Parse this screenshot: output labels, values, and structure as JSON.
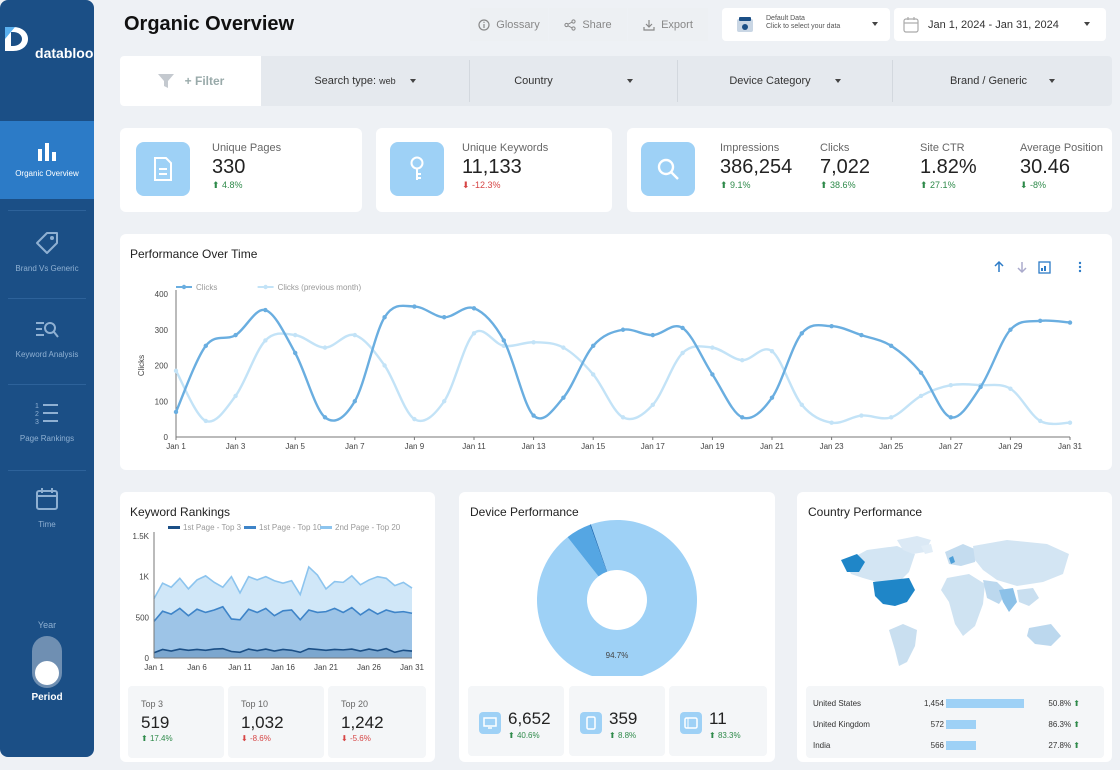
{
  "sidebar": {
    "brand": "databloo",
    "items": [
      {
        "label": "Organic Overview",
        "icon": "bar-chart-icon"
      },
      {
        "label": "Brand Vs Generic",
        "icon": "tag-icon"
      },
      {
        "label": "Keyword Analysis",
        "icon": "search-list-icon"
      },
      {
        "label": "Page Rankings",
        "icon": "numbered-list-icon"
      },
      {
        "label": "Time",
        "icon": "calendar-icon"
      }
    ],
    "toggle_title": "Year",
    "toggle_label": "Period"
  },
  "header": {
    "title": "Organic Overview",
    "glossary": "Glossary",
    "share": "Share",
    "export": "Export",
    "datasource_line1": "Default Data",
    "datasource_line2": "Click to select your data",
    "date_range": "Jan 1, 2024 - Jan 31, 2024"
  },
  "filters": {
    "add": "+ Filter",
    "search_type_label": "Search type:",
    "search_type_value": "web",
    "country": "Country",
    "device": "Device Category",
    "brand": "Brand / Generic"
  },
  "kpis": {
    "unique_pages": {
      "label": "Unique Pages",
      "value": "330",
      "delta": "4.8%",
      "dir": "up"
    },
    "unique_keywords": {
      "label": "Unique Keywords",
      "value": "11,133",
      "delta": "-12.3%",
      "dir": "down"
    },
    "impressions": {
      "label": "Impressions",
      "value": "386,254",
      "delta": "9.1%",
      "dir": "up"
    },
    "clicks": {
      "label": "Clicks",
      "value": "7,022",
      "delta": "38.6%",
      "dir": "up"
    },
    "ctr": {
      "label": "Site CTR",
      "value": "1.82%",
      "delta": "27.1%",
      "dir": "up"
    },
    "position": {
      "label": "Average Position",
      "value": "30.46",
      "delta": "-8%",
      "dir": "down"
    }
  },
  "performance": {
    "title": "Performance Over Time"
  },
  "keyword_rankings": {
    "title": "Keyword Rankings",
    "boxes": [
      {
        "label": "Top 3",
        "value": "519",
        "delta": "17.4%",
        "dir": "up"
      },
      {
        "label": "Top 10",
        "value": "1,032",
        "delta": "-8.6%",
        "dir": "down"
      },
      {
        "label": "Top 20",
        "value": "1,242",
        "delta": "-5.6%",
        "dir": "down"
      }
    ]
  },
  "device_performance": {
    "title": "Device Performance",
    "boxes": [
      {
        "icon": "desktop-icon",
        "value": "6,652",
        "delta": "40.6%",
        "dir": "up"
      },
      {
        "icon": "mobile-icon",
        "value": "359",
        "delta": "8.8%",
        "dir": "up"
      },
      {
        "icon": "tablet-icon",
        "value": "11",
        "delta": "83.3%",
        "dir": "up"
      }
    ]
  },
  "country_performance": {
    "title": "Country Performance",
    "rows": [
      {
        "country": "United States",
        "value": "1,454",
        "pct": "50.8%",
        "dir": "up",
        "share": 1.0
      },
      {
        "country": "United Kingdom",
        "value": "572",
        "pct": "86.3%",
        "dir": "up",
        "share": 0.39
      },
      {
        "country": "India",
        "value": "566",
        "pct": "27.8%",
        "dir": "up",
        "share": 0.39
      }
    ]
  },
  "colors": {
    "accent": "#2c7bc7",
    "sidebar": "#1b4f86",
    "series_current": "#6aaee0",
    "series_previous": "#c3e3f7",
    "up": "#2e8a4a",
    "down": "#d64545"
  },
  "chart_data": [
    {
      "type": "line",
      "title": "Performance Over Time",
      "ylabel": "Clicks",
      "ylim": [
        0,
        400
      ],
      "yticks": [
        0,
        100,
        200,
        300,
        400
      ],
      "x": [
        1,
        2,
        3,
        4,
        5,
        6,
        7,
        8,
        9,
        10,
        11,
        12,
        13,
        14,
        15,
        16,
        17,
        18,
        19,
        20,
        21,
        22,
        23,
        24,
        25,
        26,
        27,
        28,
        29,
        30,
        31
      ],
      "xtick_labels": [
        "Jan 1",
        "Jan 3",
        "Jan 5",
        "Jan 7",
        "Jan 9",
        "Jan 11",
        "Jan 13",
        "Jan 15",
        "Jan 17",
        "Jan 19",
        "Jan 21",
        "Jan 23",
        "Jan 25",
        "Jan 27",
        "Jan 29",
        "Jan 31"
      ],
      "legend_position": "top-left",
      "series": [
        {
          "name": "Clicks",
          "values": [
            70,
            255,
            285,
            355,
            235,
            55,
            100,
            335,
            365,
            335,
            360,
            270,
            60,
            110,
            255,
            300,
            285,
            305,
            175,
            55,
            110,
            290,
            310,
            285,
            255,
            180,
            55,
            140,
            300,
            325,
            320
          ]
        },
        {
          "name": "Clicks (previous month)",
          "values": [
            185,
            45,
            115,
            270,
            285,
            250,
            285,
            200,
            50,
            100,
            290,
            255,
            265,
            250,
            175,
            55,
            90,
            235,
            250,
            215,
            240,
            90,
            40,
            60,
            55,
            115,
            145,
            145,
            135,
            45,
            40
          ]
        }
      ]
    },
    {
      "type": "area",
      "title": "Keyword Rankings",
      "ylim": [
        0,
        1500
      ],
      "yticks": [
        0,
        500,
        1000,
        1500
      ],
      "ytick_labels": [
        "0",
        "500",
        "1K",
        "1.5K"
      ],
      "xtick_labels": [
        "Jan 1",
        "Jan 6",
        "Jan 11",
        "Jan 16",
        "Jan 21",
        "Jan 26",
        "Jan 31"
      ],
      "legend_position": "top",
      "series": [
        {
          "name": "1st Page - Top 3",
          "values": [
            65,
            105,
            85,
            110,
            95,
            105,
            95,
            110,
            115,
            80,
            70,
            110,
            90,
            110,
            85,
            105,
            95,
            70,
            115,
            105,
            95,
            105,
            100,
            110,
            85,
            110,
            90,
            115,
            70,
            95,
            85
          ]
        },
        {
          "name": "1st Page - Top 10",
          "values": [
            450,
            575,
            540,
            610,
            520,
            600,
            560,
            590,
            630,
            480,
            470,
            600,
            560,
            610,
            520,
            580,
            590,
            470,
            590,
            560,
            570,
            610,
            560,
            620,
            530,
            600,
            540,
            590,
            560,
            570,
            550
          ]
        },
        {
          "name": "2nd Page - Top 20",
          "values": [
            730,
            920,
            870,
            980,
            850,
            960,
            1010,
            930,
            870,
            1000,
            800,
            1000,
            960,
            1000,
            950,
            920,
            950,
            780,
            1120,
            1020,
            850,
            940,
            930,
            1010,
            900,
            960,
            1000,
            980,
            890,
            930,
            860
          ]
        }
      ]
    },
    {
      "type": "pie",
      "title": "Device Performance",
      "donut": true,
      "categories": [
        "Desktop",
        "Mobile",
        "Tablet"
      ],
      "values": [
        94.7,
        5.1,
        0.2
      ],
      "slice_labels": [
        "94.7%",
        "",
        ""
      ]
    }
  ]
}
